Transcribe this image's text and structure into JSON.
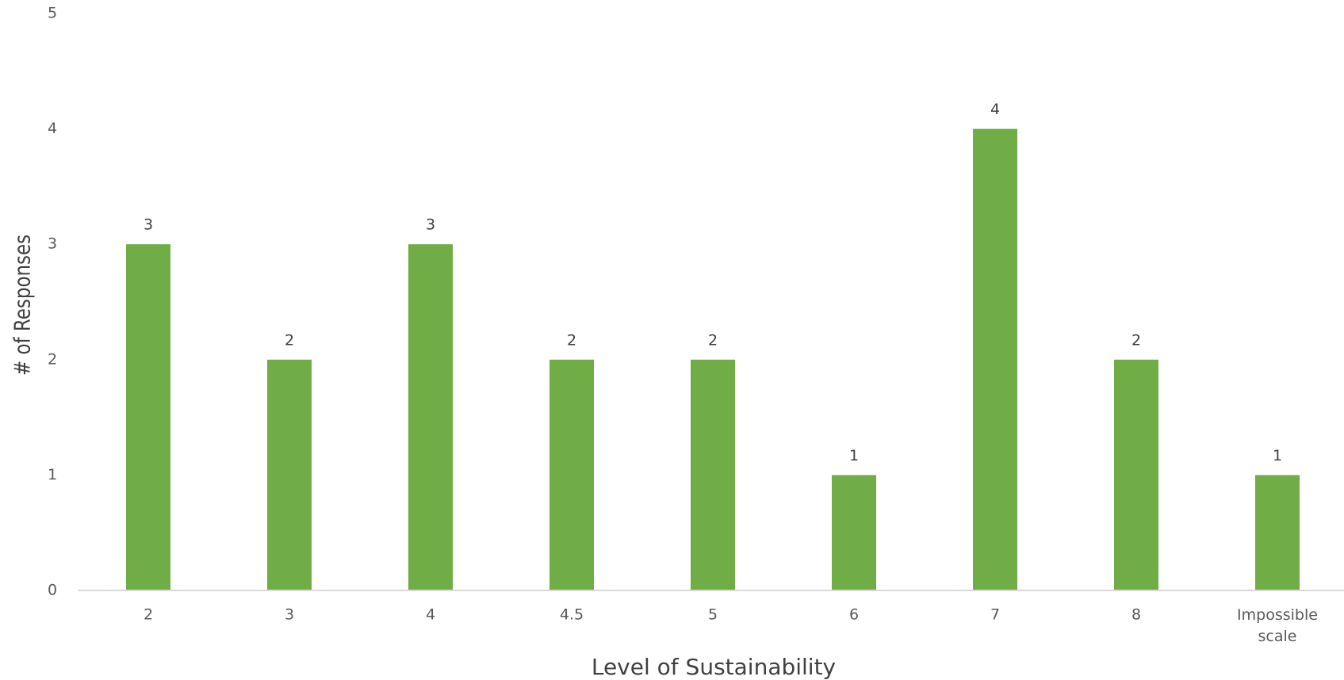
{
  "chart_data": {
    "type": "bar",
    "title": "",
    "xlabel": "Level of Sustainability",
    "ylabel": "# of Responses",
    "categories": [
      "2",
      "3",
      "4",
      "4.5",
      "5",
      "6",
      "7",
      "8",
      "Impossible scale"
    ],
    "values": [
      3,
      2,
      3,
      2,
      2,
      1,
      4,
      2,
      1
    ],
    "ylim": [
      0,
      5
    ],
    "yticks": [
      0,
      1,
      2,
      3,
      4,
      5
    ],
    "grid": false,
    "legend": "none",
    "data_labels": true,
    "colors": {
      "bar": "#70ad47",
      "axis_line": "#d9d9d9",
      "tick_text": "#595959",
      "label_text": "#404040"
    }
  }
}
